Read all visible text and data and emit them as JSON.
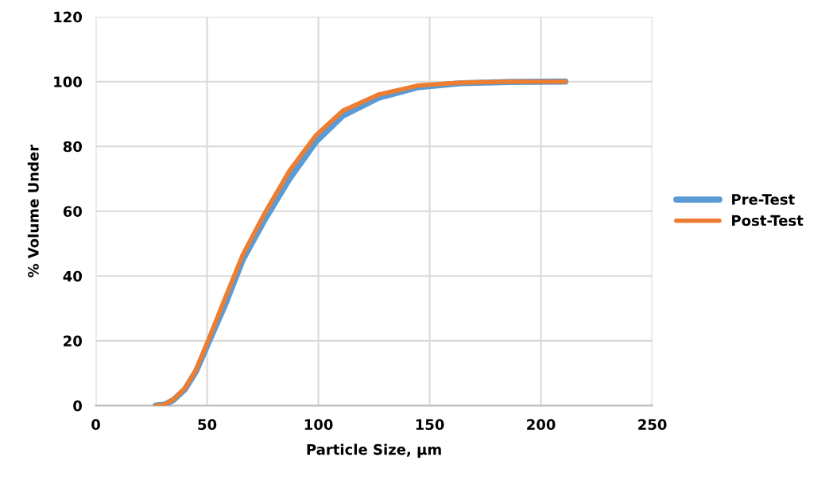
{
  "chart_data": {
    "type": "line",
    "xlabel": "Particle Size, µm",
    "ylabel": "% Volume Under",
    "x": [
      27,
      31,
      35,
      40,
      45,
      51,
      58,
      66,
      76,
      87,
      99,
      111,
      127,
      145,
      164,
      186,
      211
    ],
    "series": [
      {
        "name": "Pre-Test",
        "color": "#5b9bd5",
        "values": [
          0,
          0.3,
          1.8,
          5,
          10.5,
          20,
          31,
          45,
          57.5,
          70,
          81.5,
          89.5,
          95,
          98.3,
          99.5,
          99.9,
          100
        ]
      },
      {
        "name": "Post-Test",
        "color": "#ed7d31",
        "values": [
          0,
          0.3,
          2,
          5.3,
          11,
          21,
          33,
          46.5,
          59.5,
          72.5,
          83.5,
          91,
          96,
          98.8,
          99.7,
          100,
          100
        ]
      }
    ],
    "xlim": [
      0,
      250
    ],
    "xticks": [
      0,
      50,
      100,
      150,
      200,
      250
    ],
    "ylim": [
      0,
      120
    ],
    "yticks": [
      0,
      20,
      40,
      60,
      80,
      100,
      120
    ],
    "grid": true,
    "legend": "right",
    "marker": "none",
    "line_style": "solid"
  }
}
